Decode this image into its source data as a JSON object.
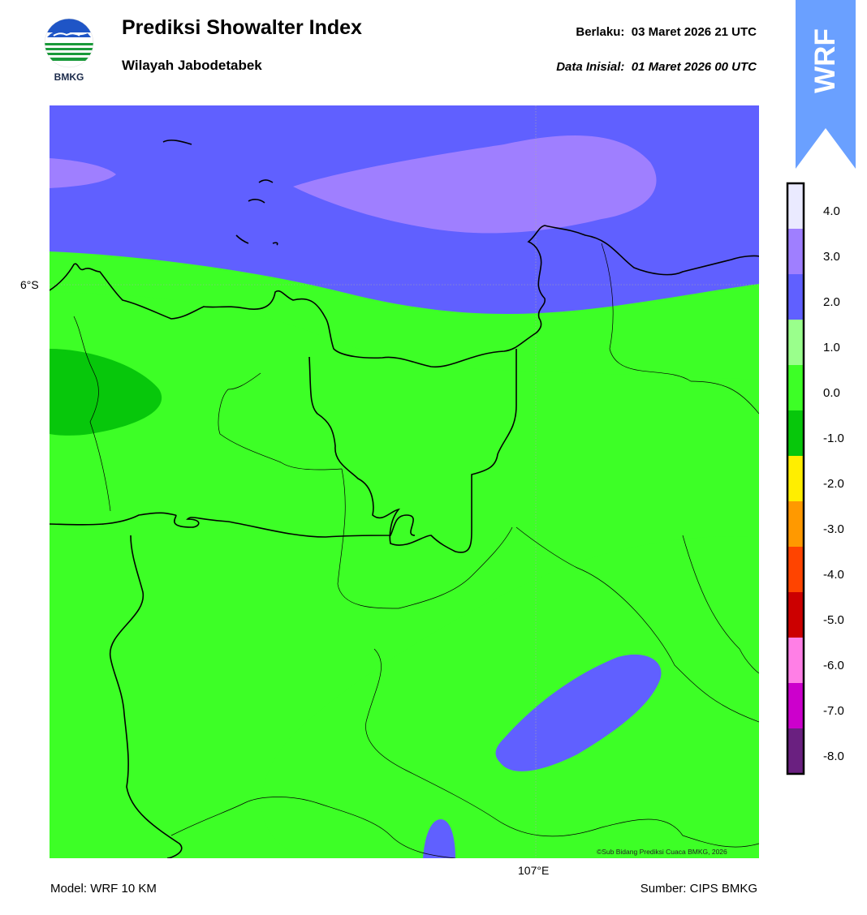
{
  "header": {
    "title": "Prediksi Showalter Index",
    "region": "Wilayah Jabodetabek",
    "valid_label": "Berlaku:",
    "valid_time": "03 Maret 2026 21 UTC",
    "init_label": "Data Inisial:",
    "init_time": "01 Maret 2026 00 UTC"
  },
  "logo": {
    "text": "BMKG"
  },
  "badge": {
    "text": "WRF"
  },
  "map": {
    "lat_label": "6°S",
    "lon_label": "107°E",
    "credit": "©Sub Bidang Prediksi Cuaca BMKG, 2026"
  },
  "footer": {
    "model": "Model: WRF 10 KM",
    "source": "Sumber: CIPS BMKG"
  },
  "legend": {
    "tick_labels": [
      "4.0",
      "3.0",
      "2.0",
      "1.0",
      "0.0",
      "-1.0",
      "-2.0",
      "-3.0",
      "-4.0",
      "-5.0",
      "-6.0",
      "-7.0",
      "-8.0"
    ],
    "colors_top_to_bottom": [
      "#eaeaff",
      "#9f7fff",
      "#6060ff",
      "#9aff8c",
      "#3dff26",
      "#07c70b",
      "#ffee00",
      "#ff9900",
      "#ff4400",
      "#cc0000",
      "#ff7fe6",
      "#cc00cc",
      "#6a2080"
    ]
  },
  "colors": {
    "brand_blue": "#1f55c6",
    "brand_green": "#1a9a3a",
    "badge": "#6aa0ff"
  }
}
